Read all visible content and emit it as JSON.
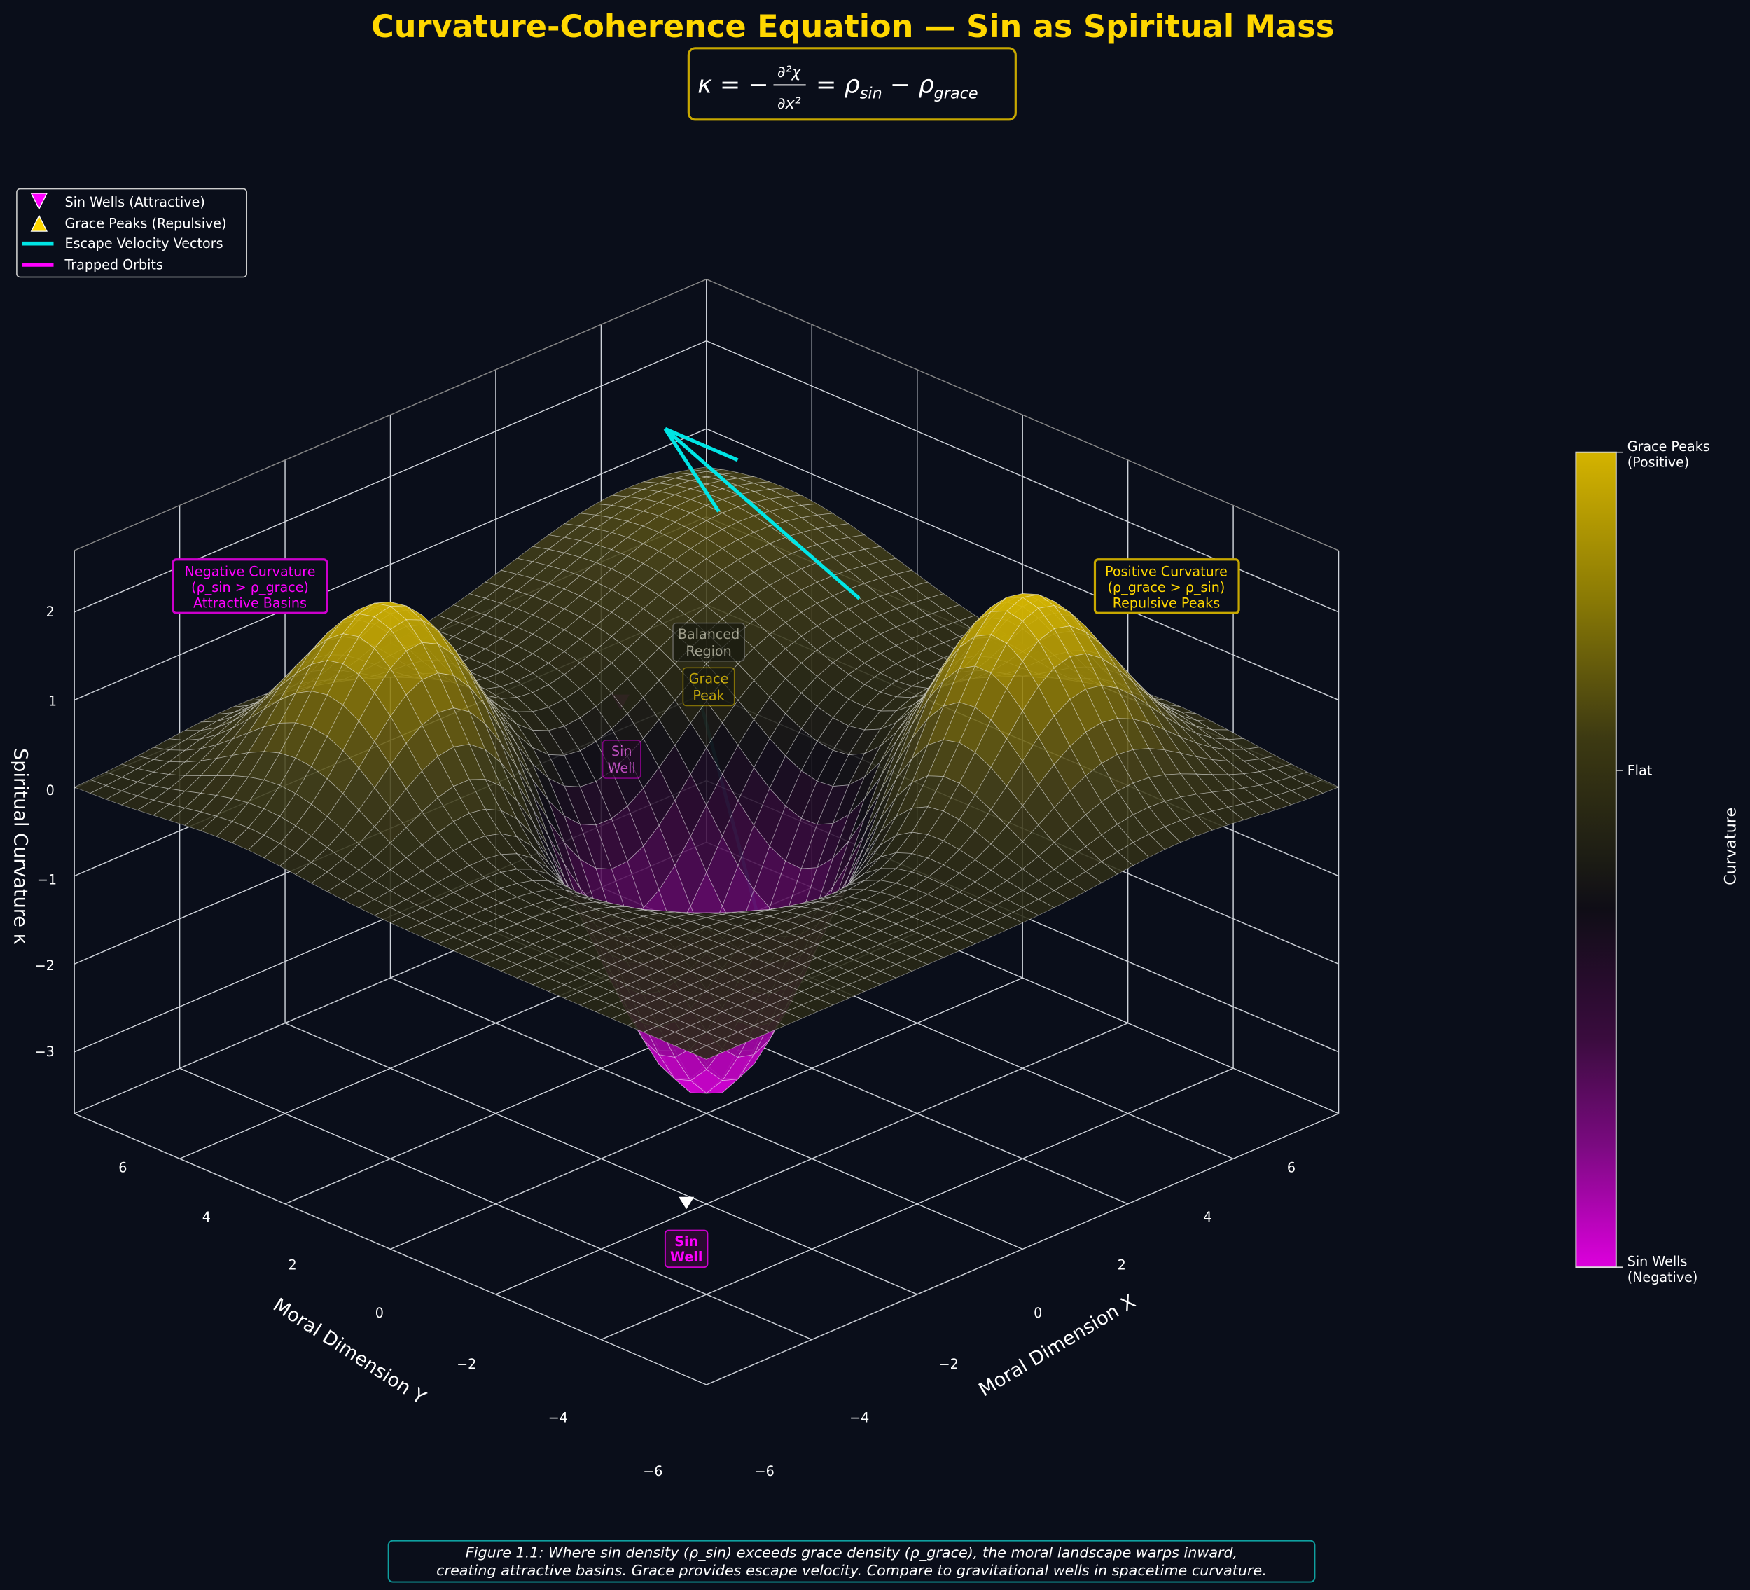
{
  "chart_data": {
    "type": "surface",
    "title": "Curvature-Coherence Equation — Sin as Spiritual Mass",
    "equation": {
      "lhs": "κ = −",
      "numerator": "∂²χ",
      "denominator": "∂x²",
      "eq2": "= ρ",
      "sub1": "sin",
      "minus": " − ρ",
      "sub2": "grace"
    },
    "xlabel": "Moral Dimension X",
    "ylabel": "Moral Dimension Y",
    "zlabel": "Spiritual Curvature κ",
    "xlim": [
      -6,
      6
    ],
    "ylim": [
      -6,
      6
    ],
    "zlim": [
      -3.7,
      2.7
    ],
    "xticks": [
      "−6",
      "−4",
      "−2",
      "0",
      "2",
      "4",
      "6"
    ],
    "yticks": [
      "−6",
      "−4",
      "−2",
      "0",
      "2",
      "4",
      "6"
    ],
    "zticks": [
      "2",
      "1",
      "0",
      "−1",
      "−2",
      "−3"
    ],
    "grid": true,
    "surface": {
      "grace_peaks": [
        {
          "x": -3,
          "y": 3,
          "z": 2.1
        },
        {
          "x": 3,
          "y": -3,
          "z": 2.2
        }
      ],
      "sin_well": {
        "x": 0,
        "y": 0,
        "z": -3.5
      }
    },
    "colormap": {
      "negative": "#dd00dd",
      "flat": "#1c1c14",
      "positive": "#d4b300"
    },
    "colorbar": {
      "label": "Curvature",
      "top": [
        "Grace Peaks",
        "(Positive)"
      ],
      "middle": "Flat",
      "bottom": [
        "Sin Wells",
        "(Negative)"
      ]
    },
    "legend": {
      "placement": "upper-left",
      "items": [
        {
          "label": "Sin Wells (Attractive)",
          "marker": "triangle-down",
          "color": "#ff00ff"
        },
        {
          "label": "Grace Peaks (Repulsive)",
          "marker": "triangle-up",
          "color": "#ffd700"
        },
        {
          "label": "Escape Velocity Vectors",
          "marker": "line",
          "color": "#00e5e5"
        },
        {
          "label": "Trapped Orbits",
          "marker": "line",
          "color": "#ff00ff"
        }
      ]
    },
    "annotations": {
      "negative": [
        "Negative Curvature",
        "(ρ_sin > ρ_grace)",
        "Attractive Basins"
      ],
      "positive": [
        "Positive Curvature",
        "(ρ_grace > ρ_sin)",
        "Repulsive Peaks"
      ],
      "sin_well": [
        "Sin",
        "Well"
      ],
      "hidden_balanced": [
        "Balanced",
        "Region"
      ],
      "hidden_grace_peak": [
        "Grace",
        "Peak"
      ],
      "hidden_sin_well": [
        "Sin",
        "Well"
      ]
    },
    "caption": [
      "Figure 1.1: Where sin density (ρ_sin) exceeds grace density (ρ_grace), the moral landscape warps inward,",
      "creating attractive basins. Grace provides escape velocity. Compare to gravitational wells in spacetime curvature."
    ],
    "colors": {
      "background": "#0a0e1a",
      "title": "#ffd700",
      "escape": "#00e5e5",
      "sin": "#ff00ff",
      "grace": "#ffd700",
      "caption_border": "#0fa0a0"
    }
  }
}
